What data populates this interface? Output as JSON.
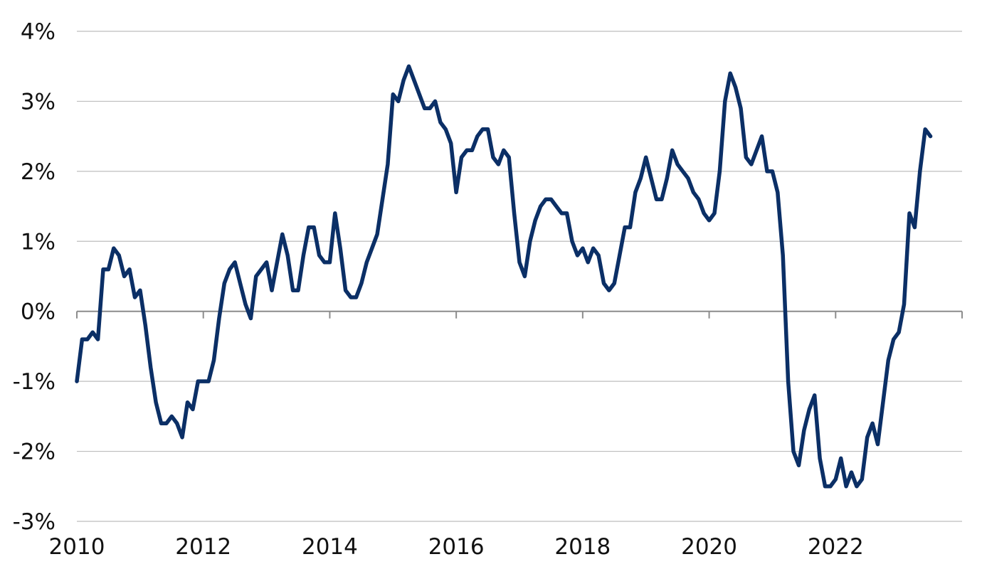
{
  "chart_data": {
    "type": "line",
    "title": "",
    "xlabel": "",
    "ylabel": "",
    "ylim": [
      -3,
      4
    ],
    "xlim": [
      2010,
      2024
    ],
    "y_ticks": [
      4,
      3,
      2,
      1,
      0,
      -1,
      -2,
      -3
    ],
    "y_tick_labels": [
      "4%",
      "3%",
      "2%",
      "1%",
      "0%",
      "-1%",
      "-2%",
      "-3%"
    ],
    "x_ticks": [
      2010,
      2012,
      2014,
      2016,
      2018,
      2020,
      2022
    ],
    "x_tick_labels": [
      "2010",
      "2012",
      "2014",
      "2016",
      "2018",
      "2020",
      "2022"
    ],
    "grid": true,
    "legend": "none",
    "colors": {
      "line": "#0b2f66",
      "grid": "#bdbdbd",
      "axis": "#8c8c8c"
    },
    "series": [
      {
        "points": [
          [
            "2010-01",
            -1.0
          ],
          [
            "2010-02",
            -0.4
          ],
          [
            "2010-03",
            -0.4
          ],
          [
            "2010-04",
            -0.3
          ],
          [
            "2010-05",
            -0.4
          ],
          [
            "2010-06",
            0.6
          ],
          [
            "2010-07",
            0.6
          ],
          [
            "2010-08",
            0.9
          ],
          [
            "2010-09",
            0.8
          ],
          [
            "2010-10",
            0.5
          ],
          [
            "2010-11",
            0.6
          ],
          [
            "2010-12",
            0.2
          ],
          [
            "2011-01",
            0.3
          ],
          [
            "2011-02",
            -0.2
          ],
          [
            "2011-03",
            -0.8
          ],
          [
            "2011-04",
            -1.3
          ],
          [
            "2011-05",
            -1.6
          ],
          [
            "2011-06",
            -1.6
          ],
          [
            "2011-07",
            -1.5
          ],
          [
            "2011-08",
            -1.6
          ],
          [
            "2011-09",
            -1.8
          ],
          [
            "2011-10",
            -1.3
          ],
          [
            "2011-11",
            -1.4
          ],
          [
            "2011-12",
            -1.0
          ],
          [
            "2012-01",
            -1.0
          ],
          [
            "2012-02",
            -1.0
          ],
          [
            "2012-03",
            -0.7
          ],
          [
            "2012-04",
            -0.1
          ],
          [
            "2012-05",
            0.4
          ],
          [
            "2012-06",
            0.6
          ],
          [
            "2012-07",
            0.7
          ],
          [
            "2012-08",
            0.4
          ],
          [
            "2012-09",
            0.1
          ],
          [
            "2012-10",
            -0.1
          ],
          [
            "2012-11",
            0.5
          ],
          [
            "2012-12",
            0.6
          ],
          [
            "2013-01",
            0.7
          ],
          [
            "2013-02",
            0.3
          ],
          [
            "2013-03",
            0.7
          ],
          [
            "2013-04",
            1.1
          ],
          [
            "2013-05",
            0.8
          ],
          [
            "2013-06",
            0.3
          ],
          [
            "2013-07",
            0.3
          ],
          [
            "2013-08",
            0.8
          ],
          [
            "2013-09",
            1.2
          ],
          [
            "2013-10",
            1.2
          ],
          [
            "2013-11",
            0.8
          ],
          [
            "2013-12",
            0.7
          ],
          [
            "2014-01",
            0.7
          ],
          [
            "2014-02",
            1.4
          ],
          [
            "2014-03",
            0.9
          ],
          [
            "2014-04",
            0.3
          ],
          [
            "2014-05",
            0.2
          ],
          [
            "2014-06",
            0.2
          ],
          [
            "2014-07",
            0.4
          ],
          [
            "2014-08",
            0.7
          ],
          [
            "2014-09",
            0.9
          ],
          [
            "2014-10",
            1.1
          ],
          [
            "2014-11",
            1.6
          ],
          [
            "2014-12",
            2.1
          ],
          [
            "2015-01",
            3.1
          ],
          [
            "2015-02",
            3.0
          ],
          [
            "2015-03",
            3.3
          ],
          [
            "2015-04",
            3.5
          ],
          [
            "2015-05",
            3.3
          ],
          [
            "2015-06",
            3.1
          ],
          [
            "2015-07",
            2.9
          ],
          [
            "2015-08",
            2.9
          ],
          [
            "2015-09",
            3.0
          ],
          [
            "2015-10",
            2.7
          ],
          [
            "2015-11",
            2.6
          ],
          [
            "2015-12",
            2.4
          ],
          [
            "2016-01",
            1.7
          ],
          [
            "2016-02",
            2.2
          ],
          [
            "2016-03",
            2.3
          ],
          [
            "2016-04",
            2.3
          ],
          [
            "2016-05",
            2.5
          ],
          [
            "2016-06",
            2.6
          ],
          [
            "2016-07",
            2.6
          ],
          [
            "2016-08",
            2.2
          ],
          [
            "2016-09",
            2.1
          ],
          [
            "2016-10",
            2.3
          ],
          [
            "2016-11",
            2.2
          ],
          [
            "2016-12",
            1.4
          ],
          [
            "2017-01",
            0.7
          ],
          [
            "2017-02",
            0.5
          ],
          [
            "2017-03",
            1.0
          ],
          [
            "2017-04",
            1.3
          ],
          [
            "2017-05",
            1.5
          ],
          [
            "2017-06",
            1.6
          ],
          [
            "2017-07",
            1.6
          ],
          [
            "2017-08",
            1.5
          ],
          [
            "2017-09",
            1.4
          ],
          [
            "2017-10",
            1.4
          ],
          [
            "2017-11",
            1.0
          ],
          [
            "2017-12",
            0.8
          ],
          [
            "2018-01",
            0.9
          ],
          [
            "2018-02",
            0.7
          ],
          [
            "2018-03",
            0.9
          ],
          [
            "2018-04",
            0.8
          ],
          [
            "2018-05",
            0.4
          ],
          [
            "2018-06",
            0.3
          ],
          [
            "2018-07",
            0.4
          ],
          [
            "2018-08",
            0.8
          ],
          [
            "2018-09",
            1.2
          ],
          [
            "2018-10",
            1.2
          ],
          [
            "2018-11",
            1.7
          ],
          [
            "2018-12",
            1.9
          ],
          [
            "2019-01",
            2.2
          ],
          [
            "2019-02",
            1.9
          ],
          [
            "2019-03",
            1.6
          ],
          [
            "2019-04",
            1.6
          ],
          [
            "2019-05",
            1.9
          ],
          [
            "2019-06",
            2.3
          ],
          [
            "2019-07",
            2.1
          ],
          [
            "2019-08",
            2.0
          ],
          [
            "2019-09",
            1.9
          ],
          [
            "2019-10",
            1.7
          ],
          [
            "2019-11",
            1.6
          ],
          [
            "2019-12",
            1.4
          ],
          [
            "2020-01",
            1.3
          ],
          [
            "2020-02",
            1.4
          ],
          [
            "2020-03",
            2.0
          ],
          [
            "2020-04",
            3.0
          ],
          [
            "2020-05",
            3.4
          ],
          [
            "2020-06",
            3.2
          ],
          [
            "2020-07",
            2.9
          ],
          [
            "2020-08",
            2.2
          ],
          [
            "2020-09",
            2.1
          ],
          [
            "2020-10",
            2.3
          ],
          [
            "2020-11",
            2.5
          ],
          [
            "2020-12",
            2.0
          ],
          [
            "2021-01",
            2.0
          ],
          [
            "2021-02",
            1.7
          ],
          [
            "2021-03",
            0.8
          ],
          [
            "2021-04",
            -1.0
          ],
          [
            "2021-05",
            -2.0
          ],
          [
            "2021-06",
            -2.2
          ],
          [
            "2021-07",
            -1.7
          ],
          [
            "2021-08",
            -1.4
          ],
          [
            "2021-09",
            -1.2
          ],
          [
            "2021-10",
            -2.1
          ],
          [
            "2021-11",
            -2.5
          ],
          [
            "2021-12",
            -2.5
          ],
          [
            "2022-01",
            -2.4
          ],
          [
            "2022-02",
            -2.1
          ],
          [
            "2022-03",
            -2.5
          ],
          [
            "2022-04",
            -2.3
          ],
          [
            "2022-05",
            -2.5
          ],
          [
            "2022-06",
            -2.4
          ],
          [
            "2022-07",
            -1.8
          ],
          [
            "2022-08",
            -1.6
          ],
          [
            "2022-09",
            -1.9
          ],
          [
            "2022-10",
            -1.3
          ],
          [
            "2022-11",
            -0.7
          ],
          [
            "2022-12",
            -0.4
          ],
          [
            "2023-01",
            -0.3
          ],
          [
            "2023-02",
            0.1
          ],
          [
            "2023-03",
            1.4
          ],
          [
            "2023-04",
            1.2
          ],
          [
            "2023-05",
            2.0
          ],
          [
            "2023-06",
            2.6
          ],
          [
            "2023-07",
            2.5
          ]
        ]
      }
    ]
  }
}
